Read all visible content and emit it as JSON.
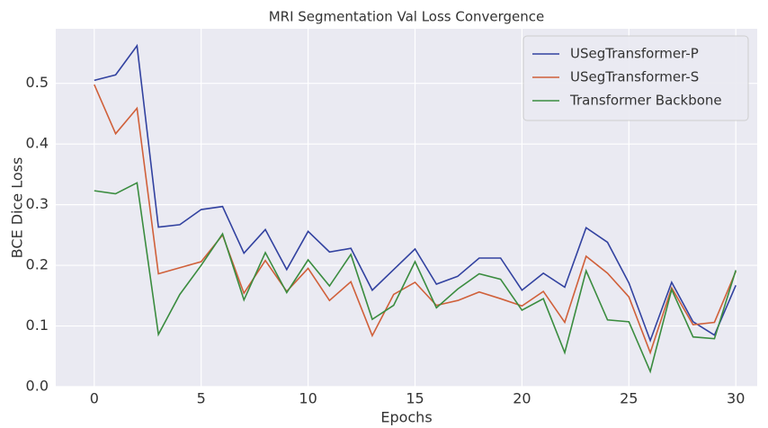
{
  "chart_data": {
    "type": "line",
    "title": "MRI Segmentation Val Loss Convergence",
    "x_label": "Epochs",
    "y_label": "BCE Dice Loss",
    "x": [
      0,
      1,
      2,
      3,
      4,
      5,
      6,
      7,
      8,
      9,
      10,
      11,
      12,
      13,
      14,
      15,
      16,
      17,
      18,
      19,
      20,
      21,
      22,
      23,
      24,
      25,
      26,
      27,
      28,
      29,
      30
    ],
    "series": [
      {
        "name": "USegTransformer-P",
        "color": "#3242a0",
        "values": [
          0.505,
          0.514,
          0.562,
          0.263,
          0.267,
          0.292,
          0.297,
          0.22,
          0.259,
          0.193,
          0.256,
          0.222,
          0.228,
          0.159,
          0.193,
          0.227,
          0.169,
          0.182,
          0.212,
          0.212,
          0.159,
          0.187,
          0.164,
          0.262,
          0.238,
          0.171,
          0.076,
          0.172,
          0.107,
          0.085,
          0.167
        ]
      },
      {
        "name": "USegTransformer-S",
        "color": "#d0603a",
        "values": [
          0.498,
          0.417,
          0.459,
          0.186,
          0.196,
          0.206,
          0.25,
          0.154,
          0.208,
          0.157,
          0.195,
          0.142,
          0.173,
          0.084,
          0.152,
          0.172,
          0.134,
          0.142,
          0.156,
          0.145,
          0.133,
          0.157,
          0.106,
          0.215,
          0.187,
          0.148,
          0.056,
          0.163,
          0.102,
          0.106,
          0.19
        ]
      },
      {
        "name": "Transformer Backbone",
        "color": "#3a8c3f",
        "values": [
          0.323,
          0.318,
          0.336,
          0.086,
          0.152,
          0.2,
          0.252,
          0.143,
          0.221,
          0.155,
          0.209,
          0.166,
          0.218,
          0.111,
          0.134,
          0.206,
          0.13,
          0.161,
          0.186,
          0.177,
          0.126,
          0.145,
          0.056,
          0.191,
          0.11,
          0.107,
          0.025,
          0.16,
          0.082,
          0.079,
          0.192
        ]
      }
    ],
    "xlim": [
      -1.8,
      31.0
    ],
    "ylim": [
      0,
      0.59
    ],
    "xticks": [
      0,
      5,
      10,
      15,
      20,
      25,
      30
    ],
    "yticks": [
      {
        "value": 0,
        "label": "0.0"
      },
      0.1,
      0.2,
      0.3,
      0.4,
      0.5
    ],
    "grid": true,
    "legend": "upper right"
  }
}
